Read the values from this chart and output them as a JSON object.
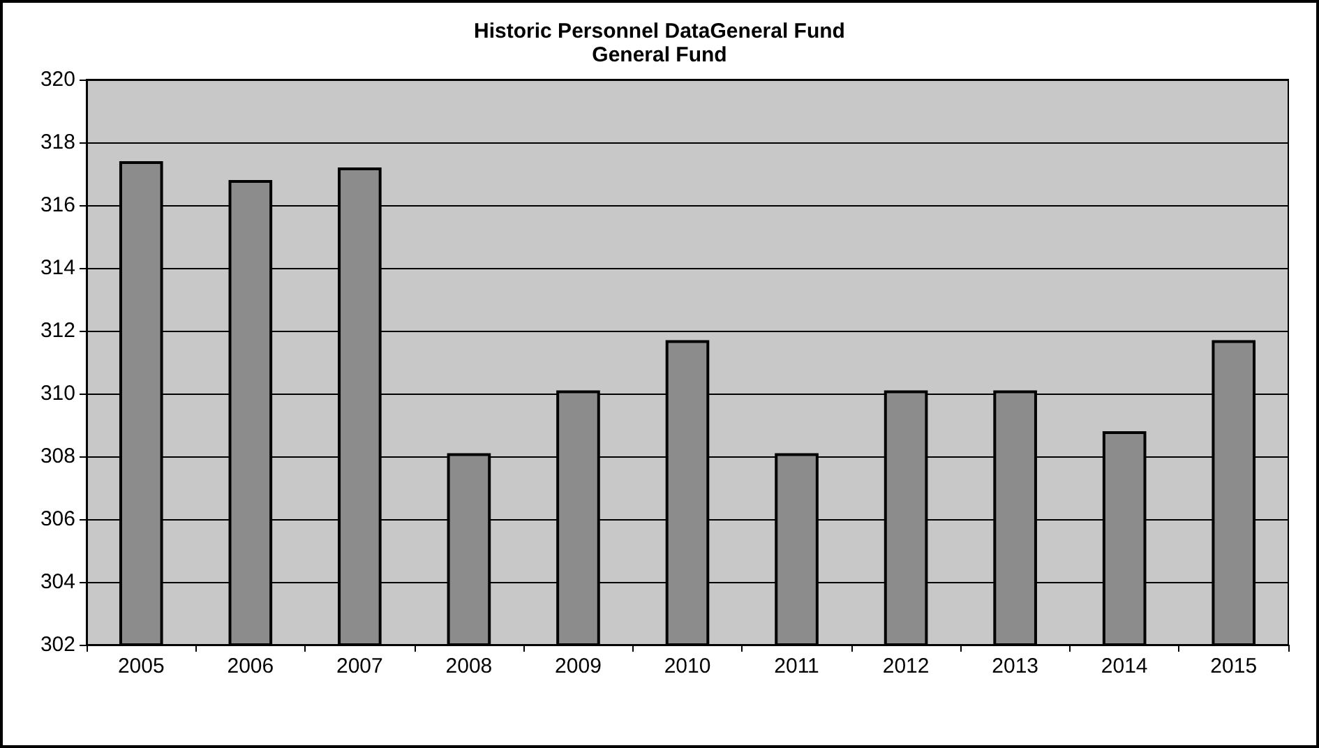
{
  "chart_data": {
    "type": "bar",
    "title": "Historic Personnel DataGeneral Fund",
    "subtitle": "General Fund",
    "categories": [
      "2005",
      "2006",
      "2007",
      "2008",
      "2009",
      "2010",
      "2011",
      "2012",
      "2013",
      "2014",
      "2015"
    ],
    "values": [
      317.4,
      316.8,
      317.2,
      308.1,
      310.1,
      311.7,
      308.1,
      310.1,
      310.1,
      308.8,
      311.7
    ],
    "color": "#8c8c8c",
    "ylim": [
      302,
      320
    ],
    "yticks": [
      302,
      304,
      306,
      308,
      310,
      312,
      314,
      316,
      318,
      320
    ],
    "grid": "y"
  }
}
